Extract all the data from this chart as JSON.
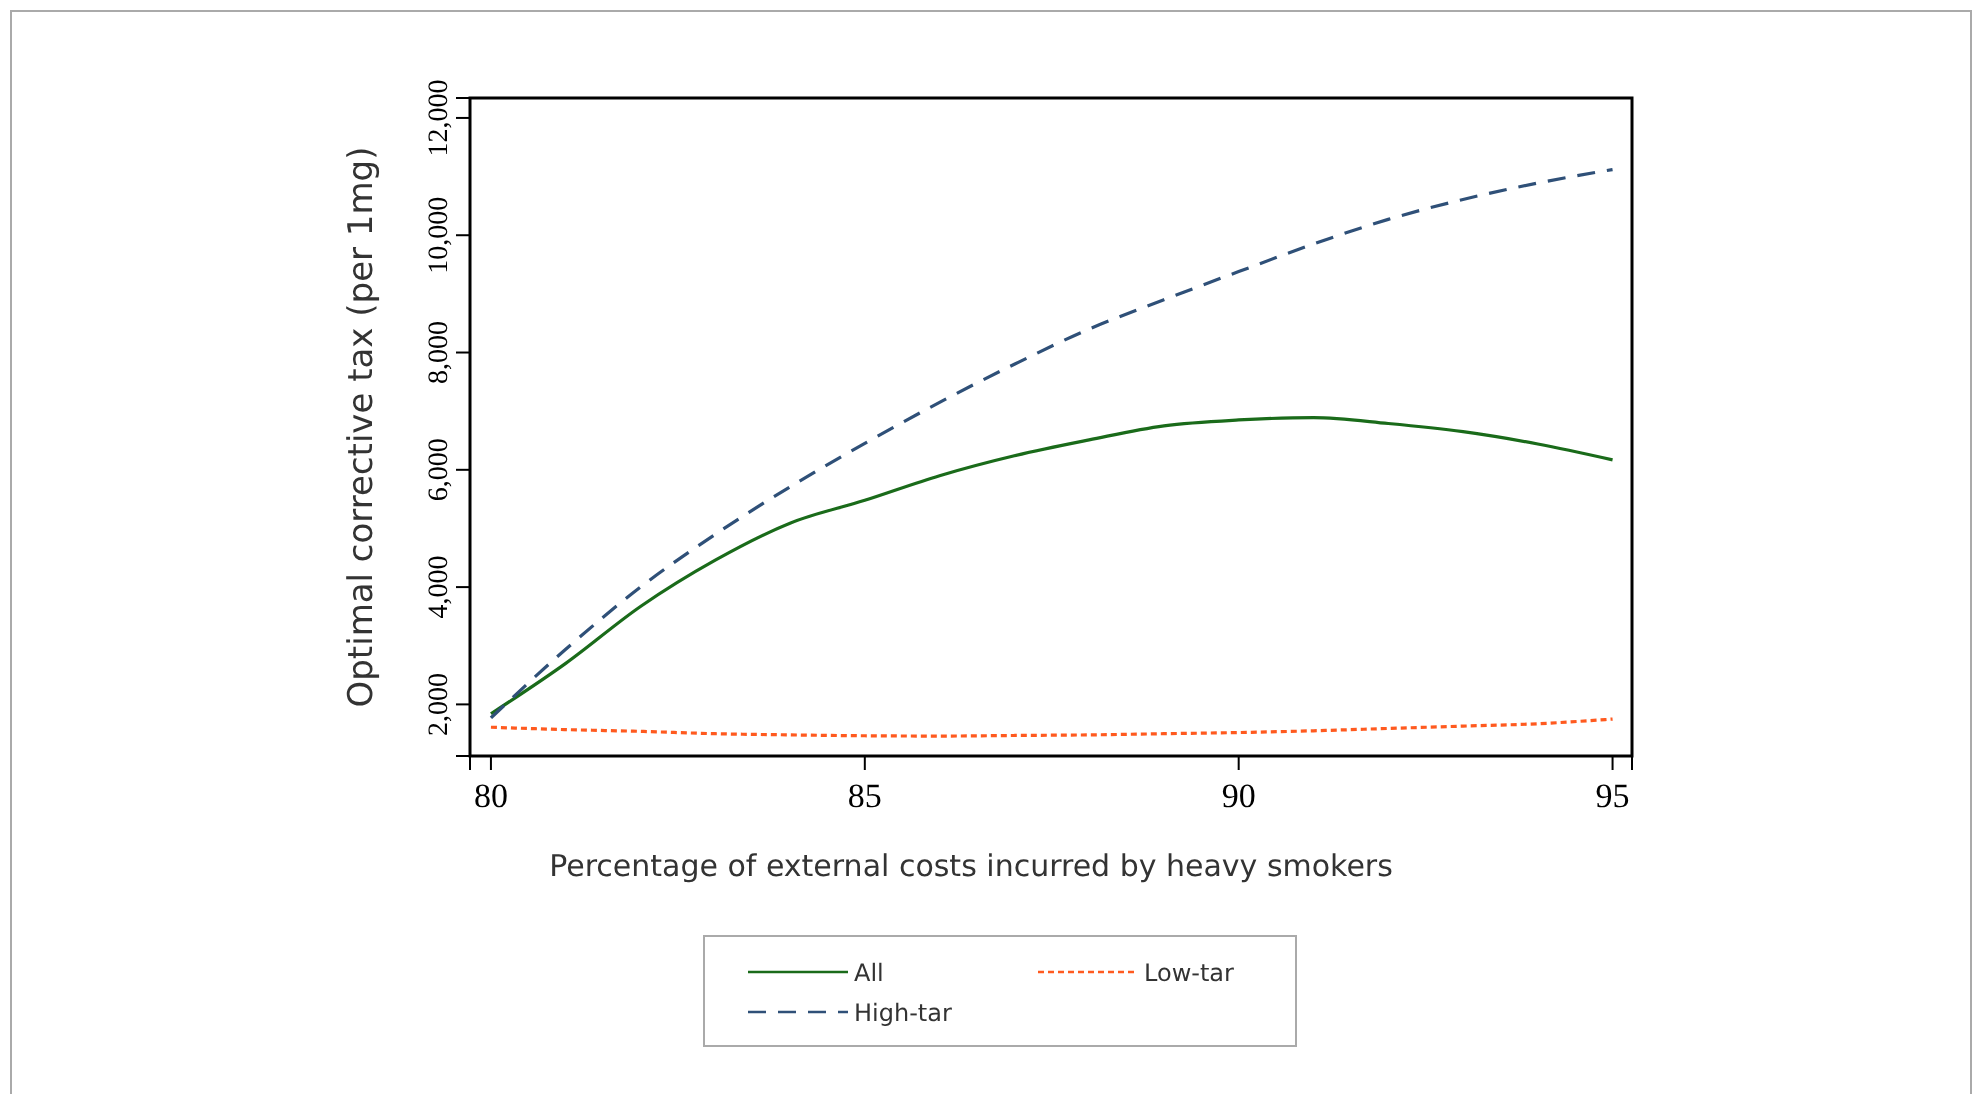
{
  "chart_data": {
    "type": "line",
    "xlabel": "Percentage of external costs incurred by heavy smokers",
    "ylabel": "Optimal corrective tax (per 1mg)",
    "xlim": [
      79.72,
      95.26
    ],
    "ylim": [
      1120,
      12340
    ],
    "xticks": [
      80,
      85,
      90,
      95
    ],
    "yticks": [
      {
        "value": 2000,
        "label": "2,000"
      },
      {
        "value": 4000,
        "label": "4,000"
      },
      {
        "value": 6000,
        "label": "6,000"
      },
      {
        "value": 8000,
        "label": "8,000"
      },
      {
        "value": 10000,
        "label": "10,000"
      },
      {
        "value": 12000,
        "label": "12,000"
      }
    ],
    "x": [
      80,
      81,
      82,
      83,
      84,
      85,
      86,
      87,
      88,
      89,
      90,
      91,
      92,
      93,
      94,
      95
    ],
    "series": [
      {
        "name": "All",
        "color": "#1a6b1a",
        "line_style": "solid",
        "values": [
          1840,
          2700,
          3670,
          4460,
          5090,
          5480,
          5900,
          6240,
          6510,
          6750,
          6850,
          6890,
          6790,
          6650,
          6440,
          6170
        ]
      },
      {
        "name": "Low-tar",
        "color": "#ff5a1f",
        "line_style": "dotted",
        "values": [
          1610,
          1570,
          1540,
          1500,
          1480,
          1465,
          1460,
          1470,
          1480,
          1500,
          1520,
          1550,
          1590,
          1630,
          1670,
          1750
        ]
      },
      {
        "name": "High-tar",
        "color": "#2f5078",
        "line_style": "dashed",
        "values": [
          1770,
          2940,
          4000,
          4900,
          5710,
          6450,
          7150,
          7800,
          8400,
          8900,
          9380,
          9850,
          10270,
          10610,
          10890,
          11120
        ]
      }
    ],
    "grid": false,
    "legend": "bottom"
  }
}
